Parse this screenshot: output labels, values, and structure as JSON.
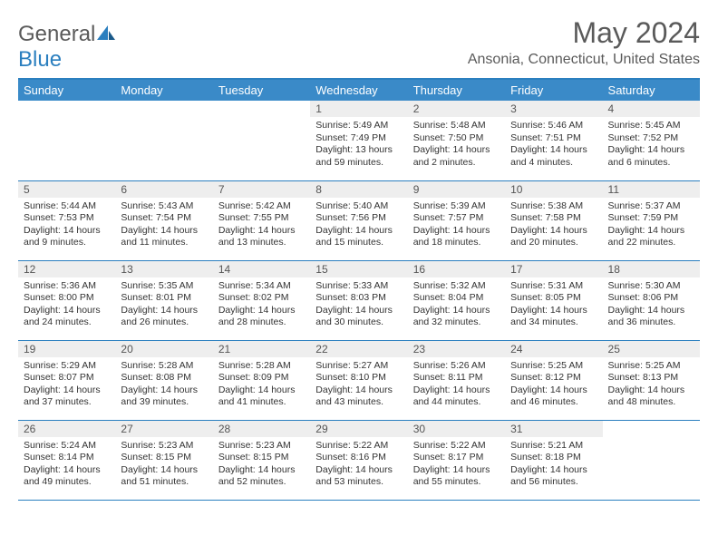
{
  "brand": {
    "first": "General",
    "second": "Blue"
  },
  "title": {
    "monthYear": "May 2024",
    "location": "Ansonia, Connecticut, United States"
  },
  "colors": {
    "headerBg": "#3a8ac8",
    "headerText": "#ffffff",
    "divider": "#2b7fbf",
    "dayNumBg": "#eeeeee",
    "text": "#333333",
    "bodyText": "#5a5a5a"
  },
  "typography": {
    "monthYearSize": 32,
    "locationSize": 16,
    "dayHeaderSize": 13,
    "dayNumSize": 12,
    "bodySize": 10.5
  },
  "layout": {
    "cols": 7,
    "rows": 5,
    "firstDayCol": 3
  },
  "weekdays": [
    "Sunday",
    "Monday",
    "Tuesday",
    "Wednesday",
    "Thursday",
    "Friday",
    "Saturday"
  ],
  "days": [
    {
      "n": 1,
      "sunrise": "5:49 AM",
      "sunset": "7:49 PM",
      "daylight": "13 hours and 59 minutes."
    },
    {
      "n": 2,
      "sunrise": "5:48 AM",
      "sunset": "7:50 PM",
      "daylight": "14 hours and 2 minutes."
    },
    {
      "n": 3,
      "sunrise": "5:46 AM",
      "sunset": "7:51 PM",
      "daylight": "14 hours and 4 minutes."
    },
    {
      "n": 4,
      "sunrise": "5:45 AM",
      "sunset": "7:52 PM",
      "daylight": "14 hours and 6 minutes."
    },
    {
      "n": 5,
      "sunrise": "5:44 AM",
      "sunset": "7:53 PM",
      "daylight": "14 hours and 9 minutes."
    },
    {
      "n": 6,
      "sunrise": "5:43 AM",
      "sunset": "7:54 PM",
      "daylight": "14 hours and 11 minutes."
    },
    {
      "n": 7,
      "sunrise": "5:42 AM",
      "sunset": "7:55 PM",
      "daylight": "14 hours and 13 minutes."
    },
    {
      "n": 8,
      "sunrise": "5:40 AM",
      "sunset": "7:56 PM",
      "daylight": "14 hours and 15 minutes."
    },
    {
      "n": 9,
      "sunrise": "5:39 AM",
      "sunset": "7:57 PM",
      "daylight": "14 hours and 18 minutes."
    },
    {
      "n": 10,
      "sunrise": "5:38 AM",
      "sunset": "7:58 PM",
      "daylight": "14 hours and 20 minutes."
    },
    {
      "n": 11,
      "sunrise": "5:37 AM",
      "sunset": "7:59 PM",
      "daylight": "14 hours and 22 minutes."
    },
    {
      "n": 12,
      "sunrise": "5:36 AM",
      "sunset": "8:00 PM",
      "daylight": "14 hours and 24 minutes."
    },
    {
      "n": 13,
      "sunrise": "5:35 AM",
      "sunset": "8:01 PM",
      "daylight": "14 hours and 26 minutes."
    },
    {
      "n": 14,
      "sunrise": "5:34 AM",
      "sunset": "8:02 PM",
      "daylight": "14 hours and 28 minutes."
    },
    {
      "n": 15,
      "sunrise": "5:33 AM",
      "sunset": "8:03 PM",
      "daylight": "14 hours and 30 minutes."
    },
    {
      "n": 16,
      "sunrise": "5:32 AM",
      "sunset": "8:04 PM",
      "daylight": "14 hours and 32 minutes."
    },
    {
      "n": 17,
      "sunrise": "5:31 AM",
      "sunset": "8:05 PM",
      "daylight": "14 hours and 34 minutes."
    },
    {
      "n": 18,
      "sunrise": "5:30 AM",
      "sunset": "8:06 PM",
      "daylight": "14 hours and 36 minutes."
    },
    {
      "n": 19,
      "sunrise": "5:29 AM",
      "sunset": "8:07 PM",
      "daylight": "14 hours and 37 minutes."
    },
    {
      "n": 20,
      "sunrise": "5:28 AM",
      "sunset": "8:08 PM",
      "daylight": "14 hours and 39 minutes."
    },
    {
      "n": 21,
      "sunrise": "5:28 AM",
      "sunset": "8:09 PM",
      "daylight": "14 hours and 41 minutes."
    },
    {
      "n": 22,
      "sunrise": "5:27 AM",
      "sunset": "8:10 PM",
      "daylight": "14 hours and 43 minutes."
    },
    {
      "n": 23,
      "sunrise": "5:26 AM",
      "sunset": "8:11 PM",
      "daylight": "14 hours and 44 minutes."
    },
    {
      "n": 24,
      "sunrise": "5:25 AM",
      "sunset": "8:12 PM",
      "daylight": "14 hours and 46 minutes."
    },
    {
      "n": 25,
      "sunrise": "5:25 AM",
      "sunset": "8:13 PM",
      "daylight": "14 hours and 48 minutes."
    },
    {
      "n": 26,
      "sunrise": "5:24 AM",
      "sunset": "8:14 PM",
      "daylight": "14 hours and 49 minutes."
    },
    {
      "n": 27,
      "sunrise": "5:23 AM",
      "sunset": "8:15 PM",
      "daylight": "14 hours and 51 minutes."
    },
    {
      "n": 28,
      "sunrise": "5:23 AM",
      "sunset": "8:15 PM",
      "daylight": "14 hours and 52 minutes."
    },
    {
      "n": 29,
      "sunrise": "5:22 AM",
      "sunset": "8:16 PM",
      "daylight": "14 hours and 53 minutes."
    },
    {
      "n": 30,
      "sunrise": "5:22 AM",
      "sunset": "8:17 PM",
      "daylight": "14 hours and 55 minutes."
    },
    {
      "n": 31,
      "sunrise": "5:21 AM",
      "sunset": "8:18 PM",
      "daylight": "14 hours and 56 minutes."
    }
  ],
  "labels": {
    "sunrise": "Sunrise: ",
    "sunset": "Sunset: ",
    "daylight": "Daylight: "
  }
}
